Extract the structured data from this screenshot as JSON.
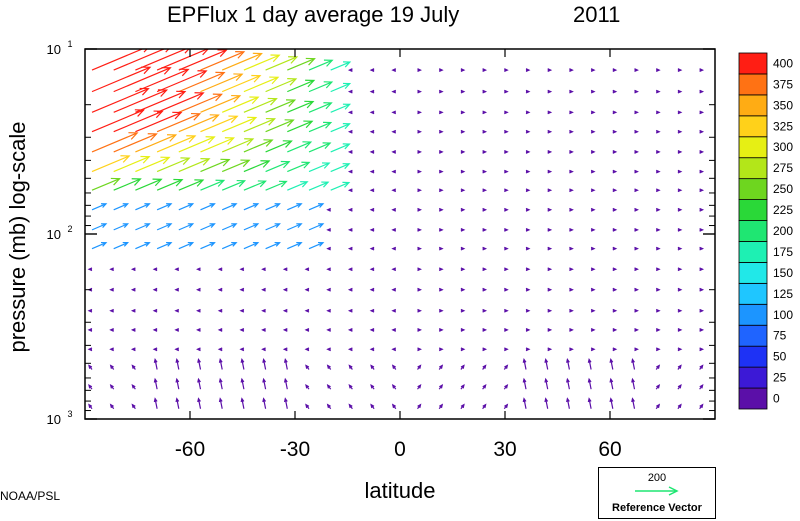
{
  "title": {
    "main": "EPFlux  1 day average  19 July",
    "year": "2011"
  },
  "credit": "NOAA/PSL",
  "chart_data": {
    "type": "vector-field",
    "title": "EPFlux  1 day average  19 July       2011",
    "xlabel": "latitude",
    "ylabel": "pressure (mb)  log-scale",
    "xlim": [
      -90,
      90
    ],
    "ylim": [
      1000,
      10
    ],
    "y_scale": "log",
    "x_ticks": [
      -60,
      -30,
      0,
      30,
      60
    ],
    "x_tick_labels": [
      "-60",
      "-30",
      "0",
      "30",
      "60"
    ],
    "y_ticks": [
      10,
      100,
      1000
    ],
    "y_tick_labels": [
      {
        "base": "10",
        "exp": "1"
      },
      {
        "base": "10",
        "exp": "2"
      },
      {
        "base": "10",
        "exp": "3"
      }
    ],
    "grid": false,
    "colorbar": {
      "levels": [
        0,
        25,
        50,
        75,
        100,
        125,
        150,
        175,
        200,
        225,
        250,
        275,
        300,
        325,
        350,
        375,
        400
      ],
      "colors": [
        "#5b0fa8",
        "#3c19d6",
        "#1e32f5",
        "#1f64ff",
        "#1c95ff",
        "#1fc6ff",
        "#21e8e8",
        "#1ef0b3",
        "#1fe672",
        "#2ad838",
        "#6ed61f",
        "#b3e619",
        "#e6ef14",
        "#ffd11a",
        "#ffac14",
        "#ff7214",
        "#ff1e14"
      ]
    },
    "reference_vector": {
      "value": 200,
      "label": "Reference Vector",
      "color": "#1fe672"
    },
    "vectors_summary": "Strong poleward-upward EP flux (magnitude ~300-400+) in the southern hemisphere upper levels (10-60 mb) between -90 and -20 latitude; weak flux (<25) elsewhere."
  }
}
